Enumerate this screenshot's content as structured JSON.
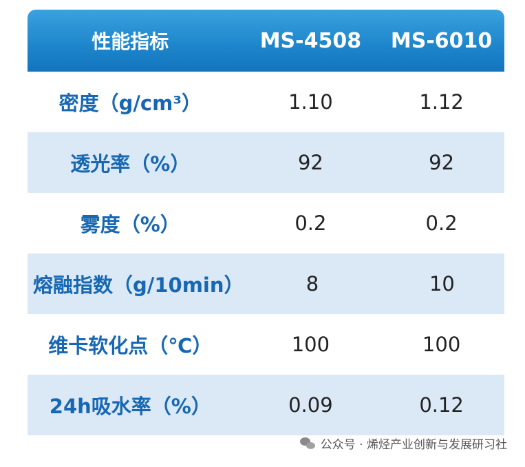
{
  "table": {
    "header": {
      "label": "性能指标",
      "col1": "MS-4508",
      "col2": "MS-6010"
    },
    "rows": [
      {
        "label": "密度（g/cm³）",
        "col1": "1.10",
        "col2": "1.12"
      },
      {
        "label": "透光率（%）",
        "col1": "92",
        "col2": "92"
      },
      {
        "label": "雾度（%）",
        "col1": "0.2",
        "col2": "0.2"
      },
      {
        "label": "熔融指数（g/10min）",
        "col1": "8",
        "col2": "10"
      },
      {
        "label": "维卡软化点（℃）",
        "col1": "100",
        "col2": "100"
      },
      {
        "label": "24h吸水率（%）",
        "col1": "0.09",
        "col2": "0.12"
      }
    ]
  },
  "watermark": {
    "text": "公众号 · 烯烃产业创新与发展研习社",
    "icon": "wechat-icon"
  },
  "colors": {
    "header_start": "#3aa2de",
    "header_end": "#1275bd",
    "label_text": "#1767b3",
    "alt_row": "#dbe9f6"
  }
}
